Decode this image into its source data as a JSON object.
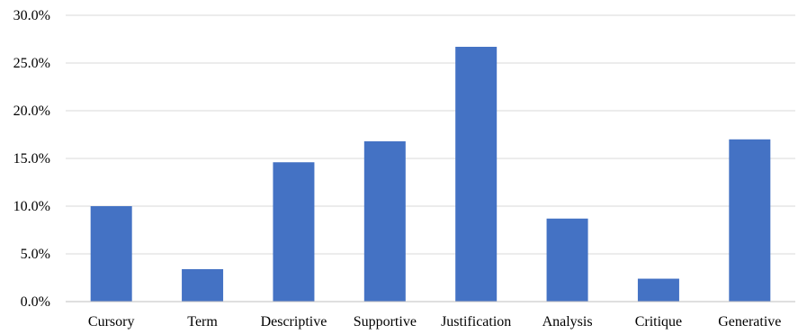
{
  "chart_data": {
    "type": "bar",
    "title": "",
    "xlabel": "",
    "ylabel": "",
    "categories": [
      "Cursory",
      "Term",
      "Descriptive",
      "Supportive",
      "Justification",
      "Analysis",
      "Critique",
      "Generative"
    ],
    "values": [
      10.0,
      3.4,
      14.6,
      16.8,
      26.7,
      8.7,
      2.4,
      17.0
    ],
    "ylim": [
      0,
      30
    ],
    "yticks": [
      0,
      5,
      10,
      15,
      20,
      25,
      30
    ],
    "ytick_labels": [
      "0.0%",
      "5.0%",
      "10.0%",
      "15.0%",
      "20.0%",
      "25.0%",
      "30.0%"
    ],
    "grid": true,
    "legend": "none",
    "colors": {
      "bar": "#4472c4"
    }
  }
}
